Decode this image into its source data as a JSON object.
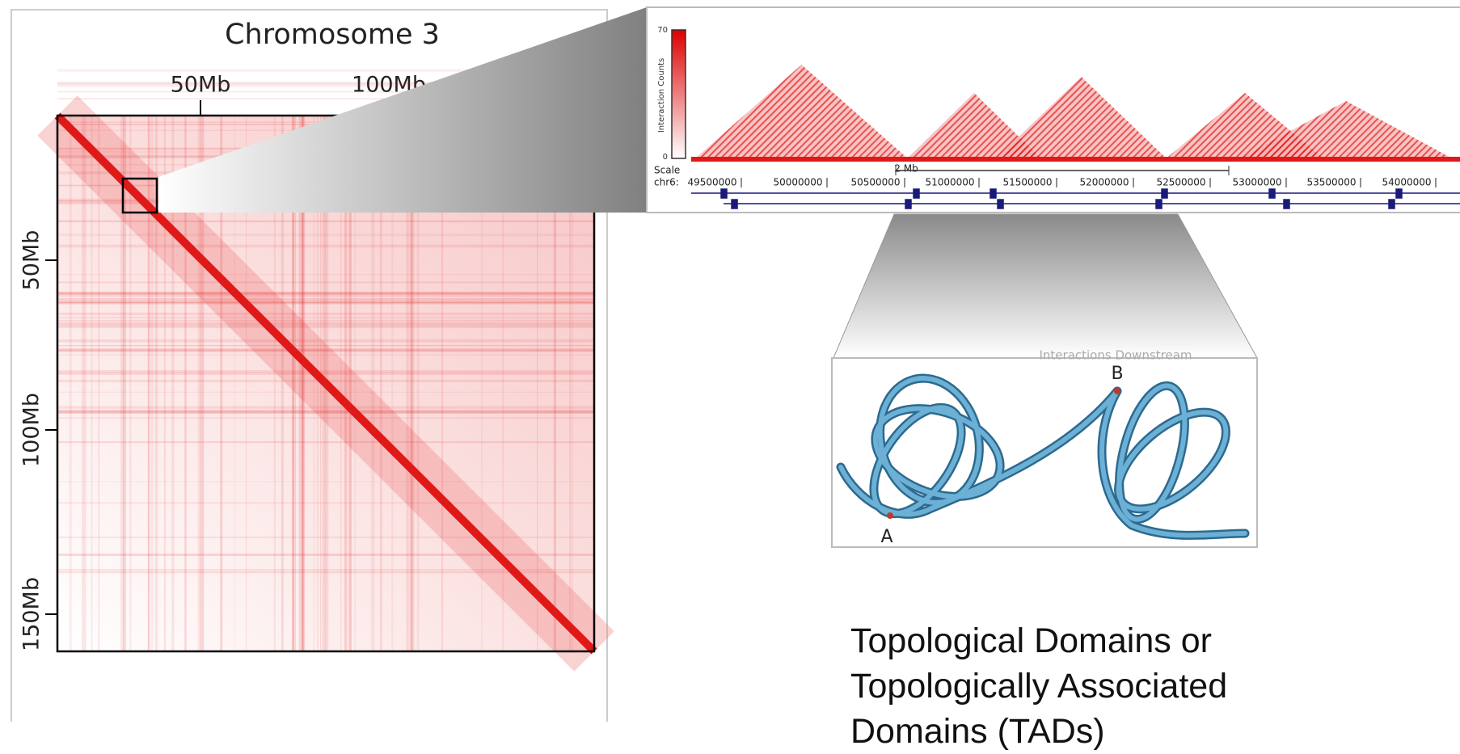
{
  "heatmap": {
    "title": "Chromosome 3",
    "x_labels": [
      "50Mb",
      "100Mb"
    ],
    "y_labels": [
      "50Mb",
      "100Mb",
      "150Mb"
    ]
  },
  "track": {
    "colorbar_max": "70",
    "colorbar_min": "0",
    "colorbar_label": "Interaction Counts",
    "scale_label": "Scale",
    "scale_value": "2 Mb",
    "chrom": "chr6:",
    "positions": [
      "49500000",
      "50000000",
      "50500000",
      "51000000",
      "51500000",
      "52000000",
      "52500000",
      "53000000",
      "53500000",
      "54000000"
    ]
  },
  "loop": {
    "header": "Interactions Downstream",
    "point_a": "A",
    "point_b": "B"
  },
  "caption": {
    "lines": [
      "Topological Domains or",
      "Topologically Associated",
      "Domains (TADs)"
    ]
  }
}
